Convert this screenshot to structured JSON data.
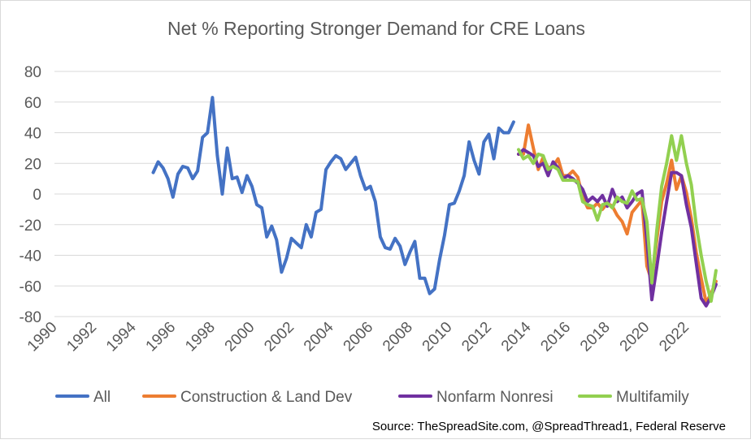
{
  "chart_data": {
    "type": "line",
    "title": "Net % Reporting Stronger Demand for CRE Loans",
    "xlabel": "",
    "ylabel": "",
    "xlim": [
      1990,
      2023.75
    ],
    "ylim": [
      -80,
      80
    ],
    "yticks": [
      80,
      60,
      40,
      20,
      0,
      -20,
      -40,
      -60,
      -80
    ],
    "xtick_labels": [
      "1990",
      "1992",
      "1994",
      "1996",
      "1998",
      "2000",
      "2002",
      "2004",
      "2006",
      "2008",
      "2010",
      "2012",
      "2014",
      "2016",
      "2018",
      "2020",
      "2022"
    ],
    "grid": true,
    "legend_position": "bottom",
    "source": "Source: TheSpreadSite.com, @SpreadThread1, Federal Reserve",
    "series": [
      {
        "name": "All",
        "color": "#4472c4",
        "points": [
          [
            1995.0,
            14
          ],
          [
            1995.25,
            21
          ],
          [
            1995.5,
            17
          ],
          [
            1995.75,
            10
          ],
          [
            1996.0,
            -2
          ],
          [
            1996.25,
            13
          ],
          [
            1996.5,
            18
          ],
          [
            1996.75,
            17
          ],
          [
            1997.0,
            10
          ],
          [
            1997.25,
            15
          ],
          [
            1997.5,
            37
          ],
          [
            1997.75,
            40
          ],
          [
            1998.0,
            63
          ],
          [
            1998.25,
            25
          ],
          [
            1998.5,
            0
          ],
          [
            1998.75,
            30
          ],
          [
            1999.0,
            10
          ],
          [
            1999.25,
            11
          ],
          [
            1999.5,
            1
          ],
          [
            1999.75,
            12
          ],
          [
            2000.0,
            5
          ],
          [
            2000.25,
            -7
          ],
          [
            2000.5,
            -9
          ],
          [
            2000.75,
            -28
          ],
          [
            2001.0,
            -21
          ],
          [
            2001.25,
            -30
          ],
          [
            2001.5,
            -51
          ],
          [
            2001.75,
            -42
          ],
          [
            2002.0,
            -29
          ],
          [
            2002.25,
            -32
          ],
          [
            2002.5,
            -35
          ],
          [
            2002.75,
            -20
          ],
          [
            2003.0,
            -28
          ],
          [
            2003.25,
            -12
          ],
          [
            2003.5,
            -10
          ],
          [
            2003.75,
            16
          ],
          [
            2004.0,
            21
          ],
          [
            2004.25,
            25
          ],
          [
            2004.5,
            23
          ],
          [
            2004.75,
            16
          ],
          [
            2005.0,
            20
          ],
          [
            2005.25,
            24
          ],
          [
            2005.5,
            12
          ],
          [
            2005.75,
            3
          ],
          [
            2006.0,
            5
          ],
          [
            2006.25,
            -5
          ],
          [
            2006.5,
            -28
          ],
          [
            2006.75,
            -35
          ],
          [
            2007.0,
            -36
          ],
          [
            2007.25,
            -29
          ],
          [
            2007.5,
            -34
          ],
          [
            2007.75,
            -46
          ],
          [
            2008.0,
            -38
          ],
          [
            2008.25,
            -31
          ],
          [
            2008.5,
            -55
          ],
          [
            2008.75,
            -55
          ],
          [
            2009.0,
            -65
          ],
          [
            2009.25,
            -62
          ],
          [
            2009.5,
            -43
          ],
          [
            2009.75,
            -27
          ],
          [
            2010.0,
            -7
          ],
          [
            2010.25,
            -6
          ],
          [
            2010.5,
            2
          ],
          [
            2010.75,
            12
          ],
          [
            2011.0,
            34
          ],
          [
            2011.25,
            22
          ],
          [
            2011.5,
            13
          ],
          [
            2011.75,
            34
          ],
          [
            2012.0,
            39
          ],
          [
            2012.25,
            23
          ],
          [
            2012.5,
            43
          ],
          [
            2012.75,
            40
          ],
          [
            2013.0,
            40
          ],
          [
            2013.25,
            47
          ]
        ]
      },
      {
        "name": "Construction & Land Dev",
        "color": "#ed7d31",
        "points": [
          [
            2013.5,
            26
          ],
          [
            2013.75,
            26
          ],
          [
            2014.0,
            45
          ],
          [
            2014.25,
            30
          ],
          [
            2014.5,
            16
          ],
          [
            2014.75,
            24
          ],
          [
            2015.0,
            17
          ],
          [
            2015.25,
            18
          ],
          [
            2015.5,
            23
          ],
          [
            2015.75,
            12
          ],
          [
            2016.0,
            12
          ],
          [
            2016.25,
            15
          ],
          [
            2016.5,
            11
          ],
          [
            2016.75,
            -2
          ],
          [
            2017.0,
            -9
          ],
          [
            2017.25,
            -9
          ],
          [
            2017.5,
            -6
          ],
          [
            2017.75,
            -10
          ],
          [
            2018.0,
            -6
          ],
          [
            2018.25,
            -8
          ],
          [
            2018.5,
            -14
          ],
          [
            2018.75,
            -18
          ],
          [
            2019.0,
            -26
          ],
          [
            2019.25,
            -12
          ],
          [
            2019.5,
            -8
          ],
          [
            2019.75,
            -4
          ],
          [
            2020.0,
            -47
          ],
          [
            2020.25,
            -57
          ],
          [
            2020.5,
            -30
          ],
          [
            2020.75,
            -5
          ],
          [
            2021.0,
            7
          ],
          [
            2021.25,
            22
          ],
          [
            2021.5,
            3
          ],
          [
            2021.75,
            12
          ],
          [
            2022.0,
            1
          ],
          [
            2022.25,
            -16
          ],
          [
            2022.5,
            -38
          ],
          [
            2022.75,
            -55
          ],
          [
            2023.0,
            -71
          ],
          [
            2023.25,
            -65
          ],
          [
            2023.5,
            -57
          ]
        ]
      },
      {
        "name": "Nonfarm Nonresi",
        "color": "#7030a0",
        "points": [
          [
            2013.5,
            26
          ],
          [
            2013.75,
            29
          ],
          [
            2014.0,
            27
          ],
          [
            2014.25,
            25
          ],
          [
            2014.5,
            18
          ],
          [
            2014.75,
            20
          ],
          [
            2015.0,
            12
          ],
          [
            2015.25,
            21
          ],
          [
            2015.5,
            17
          ],
          [
            2015.75,
            10
          ],
          [
            2016.0,
            12
          ],
          [
            2016.25,
            10
          ],
          [
            2016.5,
            7
          ],
          [
            2016.75,
            3
          ],
          [
            2017.0,
            -5
          ],
          [
            2017.25,
            -2
          ],
          [
            2017.5,
            -5
          ],
          [
            2017.75,
            -1
          ],
          [
            2018.0,
            -8
          ],
          [
            2018.25,
            3
          ],
          [
            2018.5,
            -5
          ],
          [
            2018.75,
            -2
          ],
          [
            2019.0,
            -9
          ],
          [
            2019.25,
            -5
          ],
          [
            2019.5,
            0
          ],
          [
            2019.75,
            2
          ],
          [
            2020.0,
            -30
          ],
          [
            2020.25,
            -69
          ],
          [
            2020.5,
            -48
          ],
          [
            2020.75,
            -25
          ],
          [
            2021.0,
            -5
          ],
          [
            2021.25,
            14
          ],
          [
            2021.5,
            14
          ],
          [
            2021.75,
            12
          ],
          [
            2022.0,
            -7
          ],
          [
            2022.25,
            -22
          ],
          [
            2022.5,
            -45
          ],
          [
            2022.75,
            -68
          ],
          [
            2023.0,
            -73
          ],
          [
            2023.25,
            -67
          ],
          [
            2023.5,
            -59
          ]
        ]
      },
      {
        "name": "Multifamily",
        "color": "#92d050",
        "points": [
          [
            2013.5,
            29
          ],
          [
            2013.75,
            23
          ],
          [
            2014.0,
            25
          ],
          [
            2014.25,
            20
          ],
          [
            2014.5,
            26
          ],
          [
            2014.75,
            25
          ],
          [
            2015.0,
            16
          ],
          [
            2015.25,
            18
          ],
          [
            2015.5,
            16
          ],
          [
            2015.75,
            9
          ],
          [
            2016.0,
            9
          ],
          [
            2016.25,
            9
          ],
          [
            2016.5,
            8
          ],
          [
            2016.75,
            -5
          ],
          [
            2017.0,
            -7
          ],
          [
            2017.25,
            -8
          ],
          [
            2017.5,
            -17
          ],
          [
            2017.75,
            -7
          ],
          [
            2018.0,
            -6
          ],
          [
            2018.25,
            -9
          ],
          [
            2018.5,
            -2
          ],
          [
            2018.75,
            -5
          ],
          [
            2019.0,
            -6
          ],
          [
            2019.25,
            2
          ],
          [
            2019.5,
            -4
          ],
          [
            2019.75,
            -3
          ],
          [
            2020.0,
            -18
          ],
          [
            2020.25,
            -58
          ],
          [
            2020.5,
            -24
          ],
          [
            2020.75,
            5
          ],
          [
            2021.0,
            20
          ],
          [
            2021.25,
            38
          ],
          [
            2021.5,
            22
          ],
          [
            2021.75,
            38
          ],
          [
            2022.0,
            20
          ],
          [
            2022.25,
            6
          ],
          [
            2022.5,
            -20
          ],
          [
            2022.75,
            -40
          ],
          [
            2023.0,
            -57
          ],
          [
            2023.25,
            -70
          ],
          [
            2023.5,
            -50
          ]
        ]
      }
    ]
  }
}
